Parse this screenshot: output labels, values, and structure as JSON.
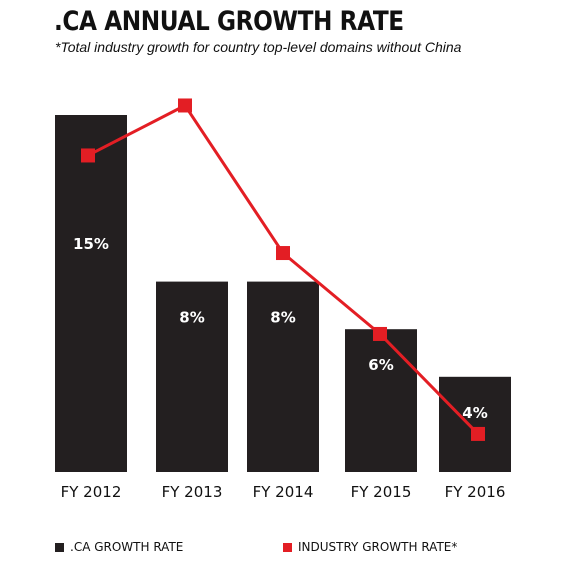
{
  "chart_data": {
    "type": "bar",
    "title": ".CA ANNUAL GROWTH RATE",
    "subtitle": "*Total industry growth for country top-level domains without China",
    "categories": [
      "FY 2012",
      "FY 2013",
      "FY 2014",
      "FY 2015",
      "FY 2016"
    ],
    "series": [
      {
        "name": ".CA GROWTH RATE",
        "kind": "bar",
        "color": "#231f20",
        "values": [
          15,
          8,
          8,
          6,
          4
        ],
        "labels": [
          "15%",
          "8%",
          "8%",
          "6%",
          "4%"
        ]
      },
      {
        "name": "INDUSTRY GROWTH RATE*",
        "kind": "line",
        "color": "#e31e24",
        "values": [
          13.3,
          15.4,
          9.2,
          5.8,
          1.6
        ]
      }
    ],
    "ylim": [
      0,
      16
    ],
    "grid": false,
    "legend": "bottom"
  }
}
